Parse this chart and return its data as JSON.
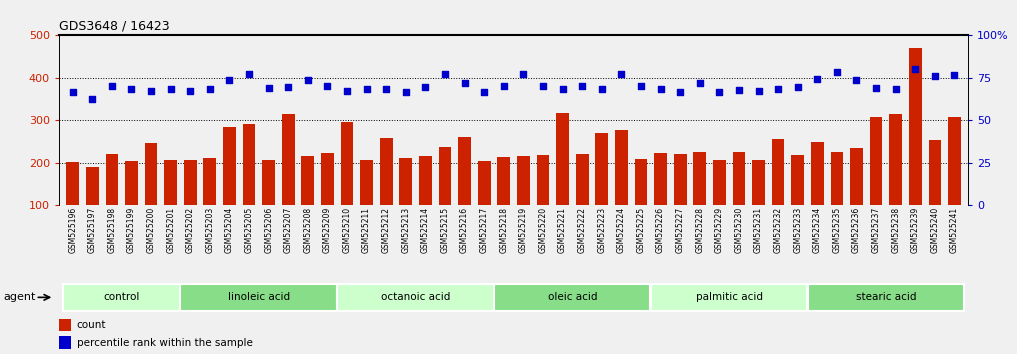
{
  "title": "GDS3648 / 16423",
  "samples": [
    "GSM525196",
    "GSM525197",
    "GSM525198",
    "GSM525199",
    "GSM525200",
    "GSM525201",
    "GSM525202",
    "GSM525203",
    "GSM525204",
    "GSM525205",
    "GSM525206",
    "GSM525207",
    "GSM525208",
    "GSM525209",
    "GSM525210",
    "GSM525211",
    "GSM525212",
    "GSM525213",
    "GSM525214",
    "GSM525215",
    "GSM525216",
    "GSM525217",
    "GSM525218",
    "GSM525219",
    "GSM525220",
    "GSM525221",
    "GSM525222",
    "GSM525223",
    "GSM525224",
    "GSM525225",
    "GSM525226",
    "GSM525227",
    "GSM525228",
    "GSM525229",
    "GSM525230",
    "GSM525231",
    "GSM525232",
    "GSM525233",
    "GSM525234",
    "GSM525235",
    "GSM525236",
    "GSM525237",
    "GSM525238",
    "GSM525239",
    "GSM525240",
    "GSM525241"
  ],
  "counts": [
    202,
    191,
    220,
    205,
    246,
    207,
    207,
    212,
    285,
    291,
    207,
    316,
    217,
    223,
    295,
    207,
    258,
    211,
    215,
    237,
    260,
    205,
    213,
    217,
    218,
    318,
    220,
    270,
    277,
    208,
    222,
    220,
    225,
    206,
    226,
    207,
    255,
    218,
    250,
    225,
    236,
    307,
    316,
    471,
    254,
    307
  ],
  "percentiles_pct": [
    66.5,
    62.5,
    70.5,
    68.5,
    67.5,
    68.5,
    67.0,
    68.5,
    73.5,
    77.5,
    69.0,
    69.5,
    74.0,
    70.0,
    67.0,
    68.5,
    68.5,
    66.5,
    69.5,
    77.0,
    72.0,
    66.5,
    70.0,
    77.5,
    70.0,
    68.5,
    70.5,
    68.5,
    77.5,
    70.0,
    68.5,
    66.5,
    72.0,
    66.5,
    68.0,
    67.0,
    68.5,
    69.5,
    74.5,
    78.5,
    74.0,
    69.0,
    68.5,
    80.5,
    76.0,
    76.5
  ],
  "groups": [
    {
      "label": "control",
      "start": 0,
      "end": 6,
      "color": "#ccffcc"
    },
    {
      "label": "linoleic acid",
      "start": 6,
      "end": 14,
      "color": "#88dd88"
    },
    {
      "label": "octanoic acid",
      "start": 14,
      "end": 22,
      "color": "#ccffcc"
    },
    {
      "label": "oleic acid",
      "start": 22,
      "end": 30,
      "color": "#88dd88"
    },
    {
      "label": "palmitic acid",
      "start": 30,
      "end": 38,
      "color": "#ccffcc"
    },
    {
      "label": "stearic acid",
      "start": 38,
      "end": 46,
      "color": "#88dd88"
    }
  ],
  "bar_color": "#cc2200",
  "dot_color": "#0000cc",
  "ylim_left": [
    100,
    500
  ],
  "ylim_right": [
    0,
    100
  ],
  "yticks_left": [
    100,
    200,
    300,
    400,
    500
  ],
  "yticks_right": [
    0,
    25,
    50,
    75,
    100
  ],
  "hlines": [
    200,
    300,
    400
  ],
  "background_color": "#f0f0f0",
  "agent_label": "agent"
}
